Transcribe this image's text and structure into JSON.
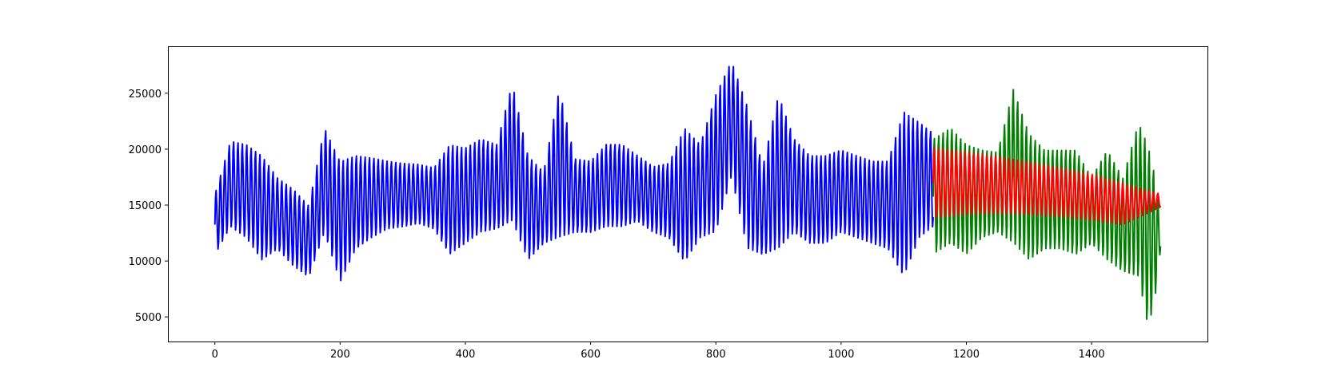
{
  "chart_data": {
    "type": "line",
    "title": "",
    "xlabel": "",
    "ylabel": "",
    "xlim": [
      -75,
      1585
    ],
    "ylim": [
      2800,
      29200
    ],
    "x_ticks": [
      0,
      200,
      400,
      600,
      800,
      1000,
      1200,
      1400
    ],
    "y_ticks": [
      5000,
      10000,
      15000,
      20000,
      25000
    ],
    "x_tick_labels": [
      "0",
      "200",
      "400",
      "600",
      "800",
      "1000",
      "1200",
      "1400"
    ],
    "y_tick_labels": [
      "5000",
      "10000",
      "15000",
      "20000",
      "25000"
    ],
    "grid": false,
    "legend": "none",
    "series": [
      {
        "color": "#0000ff",
        "period": 7,
        "x": [
          0,
          25,
          50,
          75,
          100,
          125,
          150,
          175,
          200,
          225,
          250,
          275,
          300,
          325,
          350,
          375,
          400,
          425,
          450,
          475,
          500,
          525,
          550,
          575,
          600,
          625,
          650,
          675,
          700,
          725,
          750,
          775,
          800,
          825,
          850,
          875,
          900,
          925,
          950,
          975,
          1000,
          1025,
          1050,
          1075,
          1100,
          1125,
          1147
        ],
        "high": [
          16000,
          20800,
          20500,
          19500,
          17500,
          16500,
          15000,
          22000,
          19000,
          19500,
          19300,
          19000,
          18800,
          18700,
          18400,
          20500,
          20200,
          21000,
          20500,
          26000,
          19500,
          18000,
          25500,
          19200,
          19000,
          20500,
          20500,
          19500,
          18500,
          18800,
          22000,
          20500,
          25000,
          28000,
          24000,
          18500,
          25000,
          21000,
          19500,
          19500,
          20000,
          19500,
          19000,
          19000,
          23500,
          22500,
          21500
        ],
        "low": [
          10500,
          13000,
          12000,
          10000,
          11000,
          9500,
          8500,
          12500,
          8000,
          11000,
          12000,
          12800,
          13000,
          13300,
          12800,
          10500,
          11500,
          12500,
          12800,
          13500,
          10000,
          11500,
          12000,
          12500,
          12500,
          13000,
          13000,
          13500,
          12500,
          12000,
          9800,
          12000,
          12500,
          17500,
          11000,
          10500,
          11000,
          12500,
          11500,
          11500,
          12500,
          12000,
          11500,
          11000,
          8500,
          12000,
          13000
        ]
      },
      {
        "color": "#008000",
        "period": 7,
        "x": [
          1147,
          1175,
          1200,
          1225,
          1250,
          1275,
          1300,
          1325,
          1350,
          1375,
          1400,
          1425,
          1450,
          1475,
          1490,
          1500,
          1510
        ],
        "high": [
          21000,
          22000,
          20500,
          20000,
          19800,
          25500,
          21500,
          20000,
          20000,
          20000,
          17500,
          20000,
          17500,
          22500,
          20500,
          18000,
          14000
        ],
        "low": [
          10500,
          11500,
          10500,
          12000,
          12500,
          11500,
          10000,
          11000,
          11000,
          10500,
          11500,
          10000,
          9000,
          8500,
          4000,
          6000,
          11000
        ]
      },
      {
        "color": "#ff0000",
        "period": 7,
        "x": [
          1147,
          1200,
          1250,
          1300,
          1350,
          1400,
          1450,
          1510
        ],
        "high": [
          20200,
          19800,
          19400,
          18900,
          18400,
          17800,
          17000,
          16000
        ],
        "low": [
          13800,
          14100,
          14200,
          14100,
          13900,
          13600,
          13200,
          14800
        ]
      }
    ]
  }
}
